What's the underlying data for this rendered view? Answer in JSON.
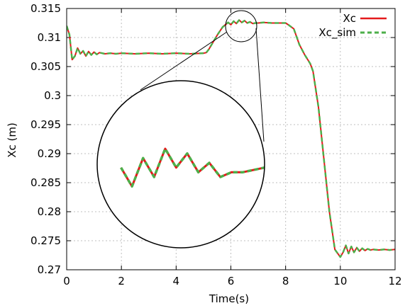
{
  "chart_data": {
    "type": "line",
    "title": "",
    "xlabel": "Time(s)",
    "ylabel": "Xc (m)",
    "xlim": [
      0,
      12
    ],
    "ylim": [
      0.27,
      0.315
    ],
    "x_ticks": [
      0,
      2,
      4,
      6,
      8,
      10,
      12
    ],
    "y_ticks": [
      0.27,
      0.275,
      0.28,
      0.285,
      0.29,
      0.295,
      0.3,
      0.305,
      0.31,
      0.315
    ],
    "x_tick_labels": [
      "0",
      "2",
      "4",
      "6",
      "8",
      "10",
      "12"
    ],
    "y_tick_labels": [
      "0.27",
      "0.275",
      "0.28",
      "0.285",
      "0.29",
      "0.295",
      "0.3",
      "0.305",
      "0.31",
      "0.315"
    ],
    "grid": true,
    "legend_position": "top-right",
    "series": [
      {
        "name": "Xc",
        "color": "#e41a1c",
        "style": "solid"
      },
      {
        "name": "Xc_sim",
        "color": "#4daf4a",
        "style": "dashed"
      }
    ],
    "x": [
      0,
      0.1,
      0.2,
      0.3,
      0.4,
      0.5,
      0.6,
      0.7,
      0.8,
      0.9,
      1.0,
      1.1,
      1.2,
      1.4,
      1.6,
      1.8,
      2.0,
      2.5,
      3.0,
      3.5,
      4.0,
      4.5,
      5.0,
      5.1,
      5.2,
      5.3,
      5.5,
      5.7,
      5.9,
      6.0,
      6.1,
      6.2,
      6.3,
      6.4,
      6.5,
      6.6,
      6.7,
      6.8,
      6.9,
      7.0,
      7.2,
      7.5,
      8.0,
      8.1,
      8.3,
      8.5,
      8.7,
      8.9,
      9.0,
      9.2,
      9.4,
      9.6,
      9.8,
      10.0,
      10.1,
      10.2,
      10.3,
      10.4,
      10.5,
      10.6,
      10.7,
      10.8,
      10.9,
      11.0,
      11.1,
      11.2,
      11.4,
      11.6,
      11.8,
      12.0
    ],
    "y": [
      0.312,
      0.3105,
      0.3062,
      0.3068,
      0.3082,
      0.3072,
      0.3077,
      0.3068,
      0.3076,
      0.307,
      0.3075,
      0.3071,
      0.3074,
      0.3072,
      0.3073,
      0.3072,
      0.3073,
      0.3072,
      0.3073,
      0.3072,
      0.3073,
      0.3072,
      0.3073,
      0.3074,
      0.308,
      0.3088,
      0.3104,
      0.3118,
      0.3126,
      0.3122,
      0.3128,
      0.3124,
      0.313,
      0.3126,
      0.3129,
      0.3125,
      0.3127,
      0.3124,
      0.3125,
      0.3125,
      0.3126,
      0.3125,
      0.3125,
      0.3122,
      0.3115,
      0.3088,
      0.307,
      0.3055,
      0.3042,
      0.298,
      0.289,
      0.28,
      0.2735,
      0.2722,
      0.273,
      0.2742,
      0.2728,
      0.274,
      0.273,
      0.2738,
      0.2732,
      0.2737,
      0.2733,
      0.2736,
      0.2734,
      0.2735,
      0.2734,
      0.2735,
      0.2734,
      0.2735
    ]
  }
}
